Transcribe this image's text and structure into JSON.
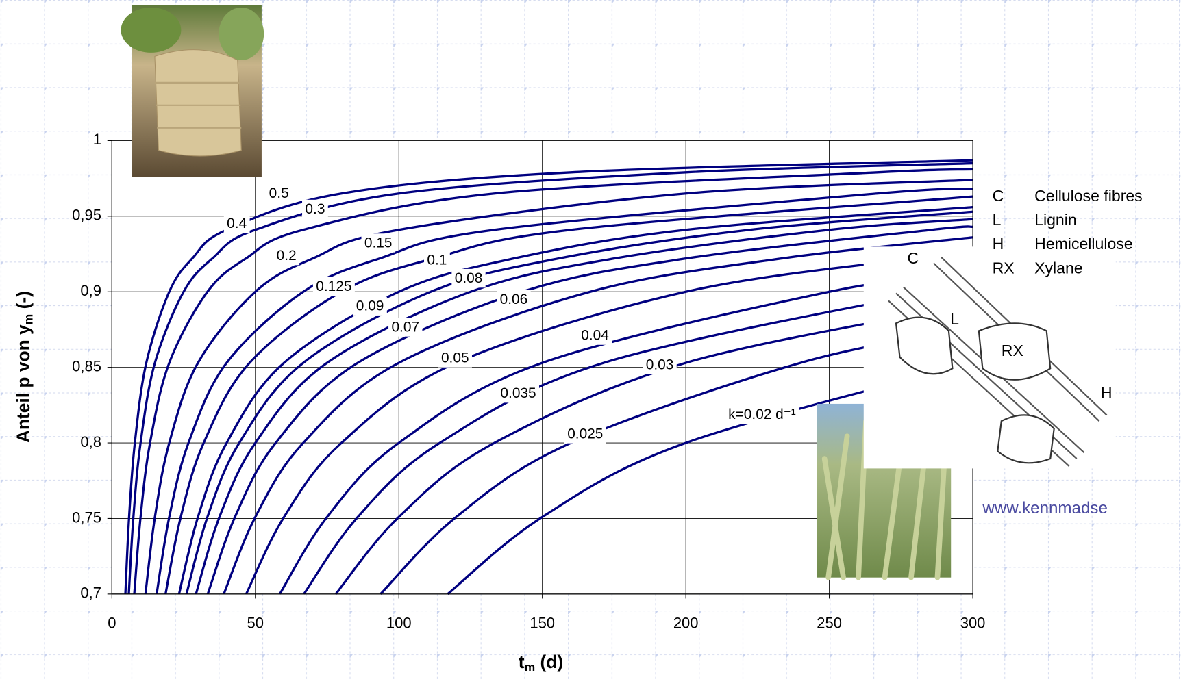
{
  "chart_data": {
    "type": "line",
    "xlabel": {
      "text": "t",
      "sub": "m",
      "rest": " (d)"
    },
    "ylabel": {
      "text": "Anteil p von y",
      "sub": "m",
      "rest": " (-)"
    },
    "xlim": [
      0,
      300
    ],
    "ylim": [
      0.7,
      1
    ],
    "xticks": [
      0,
      50,
      100,
      150,
      200,
      250,
      300
    ],
    "yticks": [
      {
        "value": 0.7,
        "label": "0,7"
      },
      {
        "value": 0.75,
        "label": "0,75"
      },
      {
        "value": 0.8,
        "label": "0,8"
      },
      {
        "value": 0.85,
        "label": "0,85"
      },
      {
        "value": 0.9,
        "label": "0,9"
      },
      {
        "value": 0.95,
        "label": "0,95"
      },
      1
    ],
    "grid": true,
    "series": [
      {
        "name": "0.5",
        "color": "#000080",
        "x": [
          4.7,
          6,
          8,
          12,
          20,
          28,
          40,
          80,
          160,
          300
        ],
        "values": [
          0.7,
          0.751,
          0.8,
          0.853,
          0.9,
          0.922,
          0.941,
          0.965,
          0.979,
          0.987
        ]
      },
      {
        "name": "0.4",
        "color": "#000080",
        "x": [
          5.9,
          7.5,
          10,
          15,
          25,
          35,
          50,
          100,
          200,
          300
        ],
        "values": [
          0.7,
          0.751,
          0.8,
          0.853,
          0.9,
          0.922,
          0.941,
          0.965,
          0.979,
          0.985
        ]
      },
      {
        "name": "0.3",
        "color": "#000080",
        "x": [
          7.8,
          10,
          13.3,
          20,
          33.3,
          46.7,
          66.7,
          133.3,
          266.7,
          300
        ],
        "values": [
          0.7,
          0.751,
          0.8,
          0.853,
          0.9,
          0.922,
          0.941,
          0.965,
          0.979,
          0.981
        ]
      },
      {
        "name": "0.2",
        "color": "#000080",
        "x": [
          11.7,
          15,
          20,
          30,
          50,
          70,
          100,
          200,
          300
        ],
        "values": [
          0.7,
          0.751,
          0.8,
          0.853,
          0.9,
          0.922,
          0.941,
          0.965,
          0.974
        ]
      },
      {
        "name": "0.15",
        "color": "#000080",
        "x": [
          15.6,
          20,
          26.7,
          40,
          66.7,
          93.3,
          133.3,
          266.7,
          300
        ],
        "values": [
          0.7,
          0.751,
          0.8,
          0.853,
          0.9,
          0.922,
          0.941,
          0.965,
          0.968
        ]
      },
      {
        "name": "0.125",
        "color": "#000080",
        "x": [
          18.7,
          24,
          32,
          48,
          80,
          112,
          160,
          300
        ],
        "values": [
          0.7,
          0.751,
          0.8,
          0.853,
          0.9,
          0.922,
          0.941,
          0.963
        ]
      },
      {
        "name": "0.1",
        "color": "#000080",
        "x": [
          23.4,
          30,
          40,
          60,
          100,
          140,
          200,
          300
        ],
        "values": [
          0.7,
          0.751,
          0.8,
          0.853,
          0.9,
          0.922,
          0.941,
          0.956
        ]
      },
      {
        "name": "0.09",
        "color": "#000080",
        "x": [
          26,
          33.3,
          44.4,
          66.7,
          111.1,
          155.6,
          222.2,
          300
        ],
        "values": [
          0.7,
          0.751,
          0.8,
          0.853,
          0.9,
          0.922,
          0.941,
          0.953
        ]
      },
      {
        "name": "0.08",
        "color": "#000080",
        "x": [
          29.3,
          37.5,
          50,
          75,
          125,
          175,
          250,
          300
        ],
        "values": [
          0.7,
          0.751,
          0.8,
          0.853,
          0.9,
          0.922,
          0.941,
          0.948
        ]
      },
      {
        "name": "0.07",
        "color": "#000080",
        "x": [
          33.4,
          42.9,
          57.1,
          85.7,
          142.9,
          200,
          285.7,
          300
        ],
        "values": [
          0.7,
          0.751,
          0.8,
          0.853,
          0.9,
          0.922,
          0.941,
          0.943
        ]
      },
      {
        "name": "0.06",
        "color": "#000080",
        "x": [
          39,
          50,
          66.7,
          100,
          166.7,
          233.3,
          300
        ],
        "values": [
          0.7,
          0.751,
          0.8,
          0.853,
          0.9,
          0.922,
          0.936
        ]
      },
      {
        "name": "0.05",
        "color": "#000080",
        "x": [
          46.8,
          60,
          80,
          120,
          200,
          280,
          300
        ],
        "values": [
          0.7,
          0.751,
          0.8,
          0.853,
          0.9,
          0.922,
          0.926
        ]
      },
      {
        "name": "0.04",
        "color": "#000080",
        "x": [
          58.5,
          75,
          100,
          150,
          250,
          300
        ],
        "values": [
          0.7,
          0.751,
          0.8,
          0.853,
          0.9,
          0.913
        ]
      },
      {
        "name": "0.035",
        "color": "#000080",
        "x": [
          66.9,
          85.7,
          114.3,
          171.4,
          285.7,
          300
        ],
        "values": [
          0.7,
          0.751,
          0.8,
          0.853,
          0.9,
          0.903
        ]
      },
      {
        "name": "0.03",
        "color": "#000080",
        "x": [
          78,
          100,
          133.3,
          200,
          300
        ],
        "values": [
          0.7,
          0.751,
          0.8,
          0.853,
          0.892
        ]
      },
      {
        "name": "0.025",
        "color": "#000080",
        "x": [
          93.6,
          120,
          160,
          240,
          300
        ],
        "values": [
          0.7,
          0.751,
          0.8,
          0.853,
          0.876
        ]
      },
      {
        "name": "k=0.02 d⁻¹",
        "color": "#000080",
        "x": [
          117,
          150,
          200,
          300
        ],
        "values": [
          0.7,
          0.751,
          0.8,
          0.853
        ]
      }
    ]
  },
  "legend_box": {
    "items": [
      {
        "code": "C",
        "text": "Cellulose fibres"
      },
      {
        "code": "L",
        "text": "Lignin"
      },
      {
        "code": "H",
        "text": "Hemicellulose"
      },
      {
        "code": "RX",
        "text": "Xylane"
      }
    ]
  },
  "diagram": {
    "labels": [
      "C",
      "L",
      "RX",
      "H"
    ]
  },
  "url": "www.kennmadse"
}
